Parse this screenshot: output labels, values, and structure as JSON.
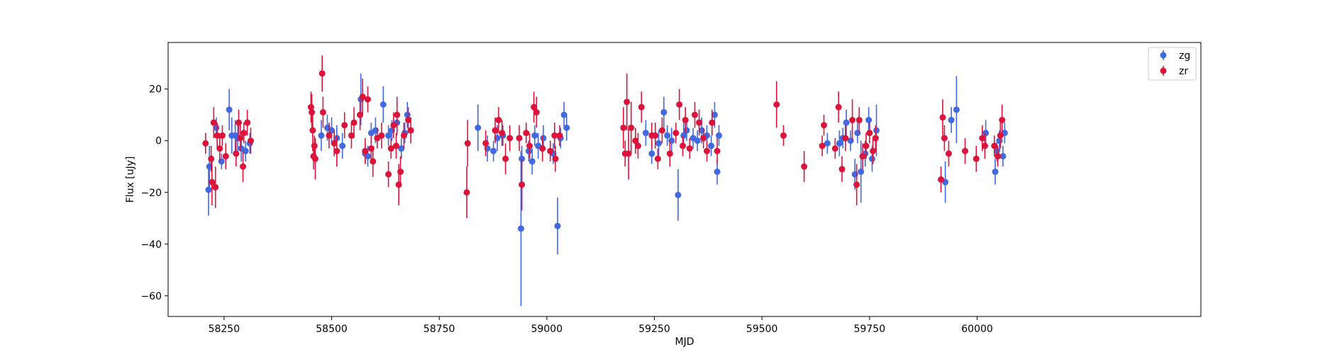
{
  "chart_data": {
    "type": "scatter",
    "xlabel": "MJD",
    "ylabel": "Flux [uJy]",
    "xlim": [
      58120,
      60520
    ],
    "ylim": [
      -68,
      38
    ],
    "xticks": [
      58250,
      58500,
      58750,
      59000,
      59250,
      59500,
      59750,
      60000
    ],
    "yticks": [
      -60,
      -40,
      -20,
      0,
      20
    ],
    "legend_position": "top-right",
    "grid": false,
    "series": [
      {
        "name": "zg",
        "color": "#4169e1",
        "points": [
          [
            58214,
            -19,
            10
          ],
          [
            58216,
            -10,
            8
          ],
          [
            58232,
            5,
            4
          ],
          [
            58244,
            -8,
            3
          ],
          [
            58262,
            12,
            8
          ],
          [
            58268,
            2,
            7
          ],
          [
            58276,
            2,
            6
          ],
          [
            58282,
            1,
            5
          ],
          [
            58290,
            -3,
            5
          ],
          [
            58300,
            -4,
            4
          ],
          [
            58310,
            -1,
            4
          ],
          [
            58476,
            2,
            6
          ],
          [
            58490,
            5,
            5
          ],
          [
            58500,
            4,
            5
          ],
          [
            58512,
            1,
            5
          ],
          [
            58525,
            -2,
            5
          ],
          [
            58568,
            16,
            10
          ],
          [
            58578,
            -5,
            4
          ],
          [
            58584,
            -6,
            4
          ],
          [
            58592,
            3,
            4
          ],
          [
            58602,
            4,
            5
          ],
          [
            58620,
            14,
            7
          ],
          [
            58632,
            2,
            4
          ],
          [
            58640,
            4,
            4
          ],
          [
            58652,
            7,
            5
          ],
          [
            58662,
            -3,
            4
          ],
          [
            58670,
            3,
            4
          ],
          [
            58676,
            10,
            5
          ],
          [
            58840,
            5,
            9
          ],
          [
            58862,
            -3,
            5
          ],
          [
            58876,
            -4,
            4
          ],
          [
            58885,
            1,
            5
          ],
          [
            58898,
            2,
            4
          ],
          [
            58940,
            -34,
            30
          ],
          [
            58942,
            -7,
            5
          ],
          [
            58958,
            -4,
            4
          ],
          [
            58966,
            -8,
            5
          ],
          [
            58972,
            2,
            4
          ],
          [
            58980,
            -2,
            5
          ],
          [
            58992,
            1,
            5
          ],
          [
            59015,
            -5,
            4
          ],
          [
            59025,
            -33,
            11
          ],
          [
            59032,
            1,
            4
          ],
          [
            59040,
            10,
            5
          ],
          [
            59046,
            5,
            5
          ],
          [
            59230,
            3,
            5
          ],
          [
            59244,
            -5,
            4
          ],
          [
            59260,
            -1,
            5
          ],
          [
            59272,
            11,
            6
          ],
          [
            59280,
            2,
            4
          ],
          [
            59290,
            0,
            5
          ],
          [
            59305,
            -21,
            10
          ],
          [
            59318,
            2,
            5
          ],
          [
            59325,
            4,
            4
          ],
          [
            59340,
            1,
            4
          ],
          [
            59350,
            0,
            4
          ],
          [
            59360,
            4,
            5
          ],
          [
            59372,
            2,
            4
          ],
          [
            59382,
            -2,
            4
          ],
          [
            59390,
            10,
            5
          ],
          [
            59396,
            -12,
            5
          ],
          [
            59400,
            2,
            4
          ],
          [
            59652,
            -1,
            4
          ],
          [
            59680,
            -1,
            5
          ],
          [
            59688,
            1,
            4
          ],
          [
            59696,
            7,
            5
          ],
          [
            59706,
            0,
            4
          ],
          [
            59716,
            -13,
            6
          ],
          [
            59722,
            3,
            4
          ],
          [
            59730,
            -12,
            12
          ],
          [
            59740,
            -5,
            5
          ],
          [
            59748,
            8,
            5
          ],
          [
            59756,
            -7,
            5
          ],
          [
            59766,
            4,
            10
          ],
          [
            59926,
            -16,
            8
          ],
          [
            59940,
            8,
            5
          ],
          [
            59952,
            12,
            13
          ],
          [
            60020,
            3,
            5
          ],
          [
            60042,
            -12,
            5
          ],
          [
            60046,
            -4,
            4
          ],
          [
            60052,
            0,
            4
          ],
          [
            60060,
            -6,
            4
          ],
          [
            60064,
            3,
            4
          ]
        ]
      },
      {
        "name": "zr",
        "color": "#dc143c",
        "points": [
          [
            58207,
            -1,
            4
          ],
          [
            58220,
            -7,
            5
          ],
          [
            58222,
            -16,
            9
          ],
          [
            58226,
            7,
            6
          ],
          [
            58230,
            -18,
            8
          ],
          [
            58234,
            2,
            5
          ],
          [
            58240,
            -3,
            5
          ],
          [
            58246,
            2,
            4
          ],
          [
            58254,
            -6,
            5
          ],
          [
            58278,
            -5,
            5
          ],
          [
            58284,
            7,
            5
          ],
          [
            58288,
            1,
            5
          ],
          [
            58294,
            -10,
            6
          ],
          [
            58296,
            3,
            4
          ],
          [
            58304,
            7,
            5
          ],
          [
            58312,
            0,
            5
          ],
          [
            58452,
            13,
            6
          ],
          [
            58454,
            11,
            7
          ],
          [
            58456,
            4,
            8
          ],
          [
            58458,
            -6,
            5
          ],
          [
            58460,
            -2,
            4
          ],
          [
            58462,
            -7,
            8
          ],
          [
            58478,
            26,
            7
          ],
          [
            58480,
            11,
            6
          ],
          [
            58494,
            2,
            5
          ],
          [
            58506,
            -1,
            5
          ],
          [
            58512,
            -4,
            6
          ],
          [
            58530,
            6,
            5
          ],
          [
            58546,
            2,
            5
          ],
          [
            58552,
            7,
            6
          ],
          [
            58566,
            10,
            6
          ],
          [
            58572,
            17,
            7
          ],
          [
            58578,
            -4,
            5
          ],
          [
            58584,
            16,
            5
          ],
          [
            58592,
            -3,
            5
          ],
          [
            58596,
            -8,
            6
          ],
          [
            58606,
            1,
            4
          ],
          [
            58616,
            2,
            5
          ],
          [
            58632,
            -13,
            5
          ],
          [
            58638,
            -3,
            4
          ],
          [
            58644,
            6,
            5
          ],
          [
            58650,
            -2,
            5
          ],
          [
            58652,
            10,
            7
          ],
          [
            58656,
            -17,
            8
          ],
          [
            58660,
            -12,
            6
          ],
          [
            58668,
            2,
            5
          ],
          [
            58678,
            8,
            5
          ],
          [
            58684,
            4,
            5
          ],
          [
            58814,
            -20,
            10
          ],
          [
            58816,
            -1,
            9
          ],
          [
            58858,
            -1,
            5
          ],
          [
            58880,
            4,
            5
          ],
          [
            58888,
            8,
            5
          ],
          [
            58896,
            3,
            5
          ],
          [
            58904,
            -7,
            6
          ],
          [
            58914,
            1,
            5
          ],
          [
            58936,
            1,
            5
          ],
          [
            58942,
            -17,
            10
          ],
          [
            58952,
            3,
            4
          ],
          [
            58960,
            -2,
            5
          ],
          [
            58970,
            13,
            6
          ],
          [
            58976,
            11,
            6
          ],
          [
            58990,
            -3,
            5
          ],
          [
            59008,
            -4,
            4
          ],
          [
            59018,
            2,
            5
          ],
          [
            59020,
            -7,
            5
          ],
          [
            59030,
            2,
            4
          ],
          [
            59178,
            5,
            8
          ],
          [
            59182,
            -5,
            5
          ],
          [
            59186,
            15,
            11
          ],
          [
            59190,
            -5,
            10
          ],
          [
            59196,
            5,
            10
          ],
          [
            59206,
            0,
            5
          ],
          [
            59212,
            -2,
            5
          ],
          [
            59220,
            13,
            6
          ],
          [
            59244,
            2,
            5
          ],
          [
            59252,
            2,
            5
          ],
          [
            59258,
            -7,
            4
          ],
          [
            59268,
            4,
            5
          ],
          [
            59286,
            -5,
            5
          ],
          [
            59300,
            3,
            4
          ],
          [
            59308,
            14,
            6
          ],
          [
            59316,
            -2,
            4
          ],
          [
            59322,
            8,
            5
          ],
          [
            59332,
            -3,
            4
          ],
          [
            59344,
            10,
            5
          ],
          [
            59354,
            7,
            5
          ],
          [
            59364,
            1,
            4
          ],
          [
            59372,
            -4,
            4
          ],
          [
            59384,
            7,
            5
          ],
          [
            59396,
            -4,
            5
          ],
          [
            59534,
            14,
            9
          ],
          [
            59550,
            2,
            4
          ],
          [
            59598,
            -10,
            6
          ],
          [
            59640,
            -2,
            4
          ],
          [
            59644,
            6,
            4
          ],
          [
            59670,
            -3,
            4
          ],
          [
            59678,
            13,
            6
          ],
          [
            59686,
            -11,
            5
          ],
          [
            59694,
            1,
            5
          ],
          [
            59710,
            8,
            8
          ],
          [
            59720,
            -17,
            8
          ],
          [
            59726,
            8,
            5
          ],
          [
            59734,
            -6,
            5
          ],
          [
            59742,
            -2,
            5
          ],
          [
            59750,
            3,
            4
          ],
          [
            59758,
            -4,
            5
          ],
          [
            59764,
            1,
            5
          ],
          [
            59916,
            -15,
            5
          ],
          [
            59920,
            9,
            7
          ],
          [
            59924,
            1,
            5
          ],
          [
            59934,
            -5,
            5
          ],
          [
            59972,
            -4,
            5
          ],
          [
            59998,
            -7,
            5
          ],
          [
            60012,
            1,
            5
          ],
          [
            60018,
            -2,
            5
          ],
          [
            60040,
            -2,
            4
          ],
          [
            60048,
            -6,
            4
          ],
          [
            60054,
            2,
            5
          ],
          [
            60058,
            8,
            6
          ]
        ]
      }
    ]
  }
}
